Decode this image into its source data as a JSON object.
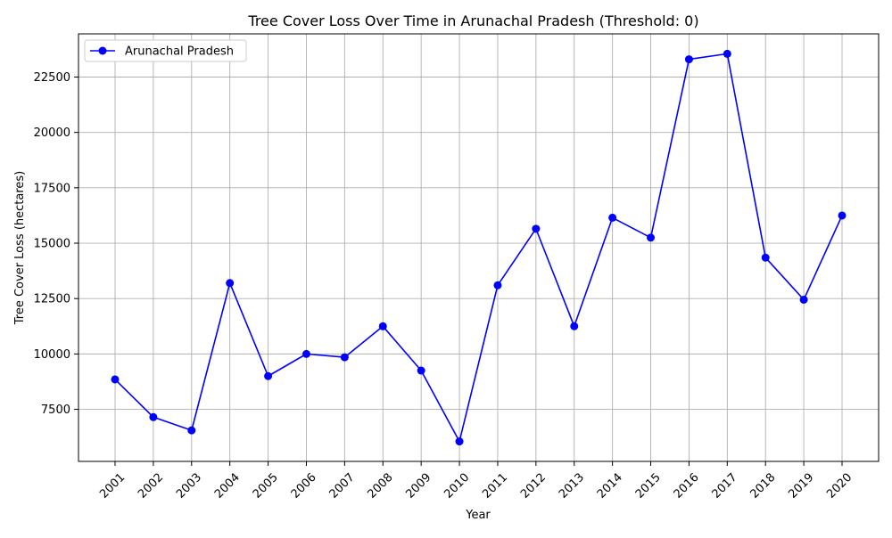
{
  "chart_data": {
    "type": "line",
    "title": "Tree Cover Loss Over Time in Arunachal Pradesh (Threshold: 0)",
    "xlabel": "Year",
    "ylabel": "Tree Cover Loss (hectares)",
    "categories": [
      "2001",
      "2002",
      "2003",
      "2004",
      "2005",
      "2006",
      "2007",
      "2008",
      "2009",
      "2010",
      "2011",
      "2012",
      "2013",
      "2014",
      "2015",
      "2016",
      "2017",
      "2018",
      "2019",
      "2020"
    ],
    "series": [
      {
        "name": "Arunachal Pradesh",
        "color": "#0000ff",
        "values": [
          8850,
          7150,
          6550,
          13200,
          9000,
          10000,
          9850,
          11250,
          9250,
          6050,
          13100,
          15650,
          11250,
          16150,
          15250,
          23300,
          23550,
          14350,
          12450,
          16250
        ]
      }
    ],
    "ylim": [
      5150,
      24450
    ],
    "yticks": [
      7500,
      10000,
      12500,
      15000,
      17500,
      20000,
      22500
    ],
    "grid": true,
    "legend_position": "top-left"
  }
}
